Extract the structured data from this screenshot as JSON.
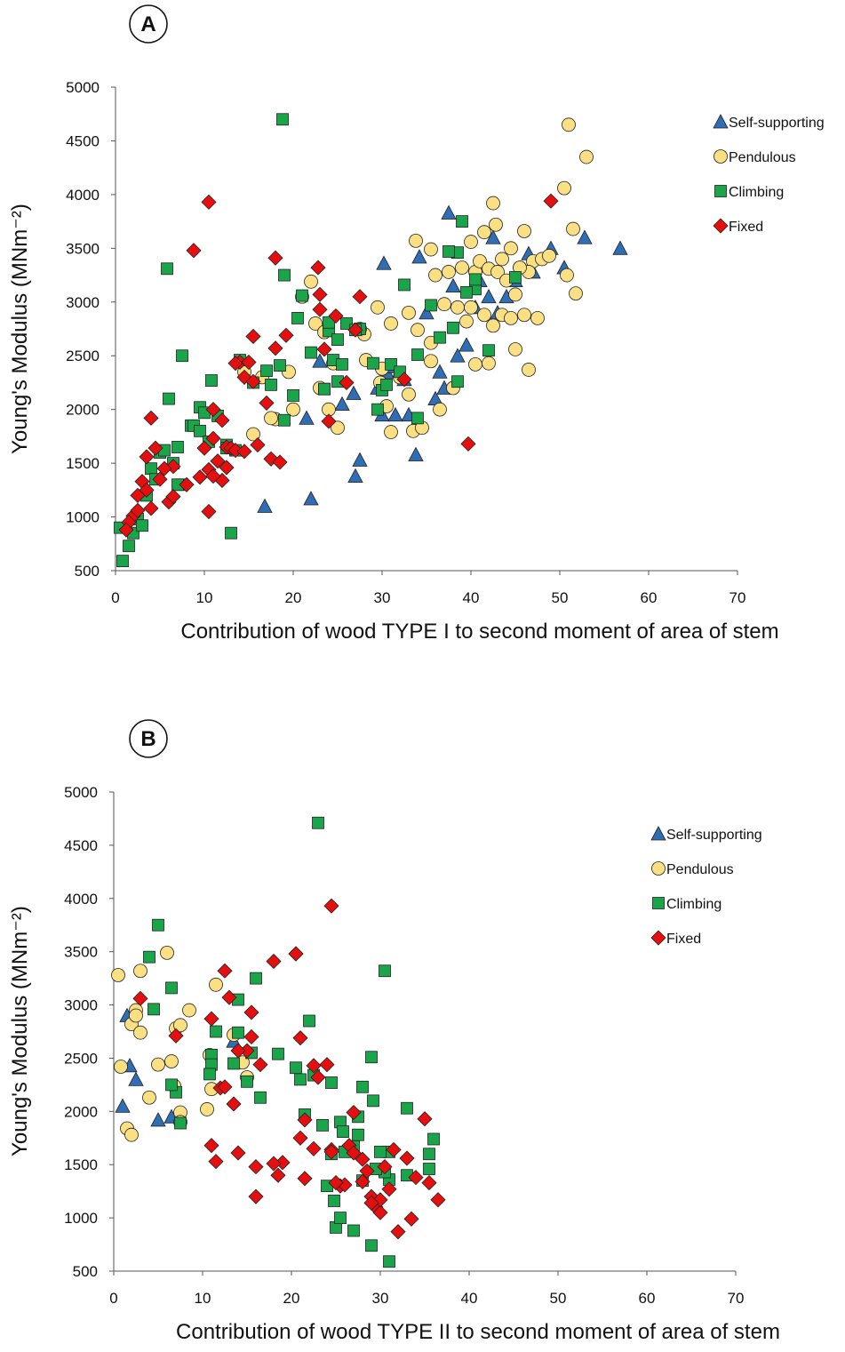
{
  "chart_data": [
    {
      "panel": "A",
      "type": "scatter",
      "xlabel": "Contribution of wood TYPE I to second moment of area of stem",
      "ylabel": "Young's Modulus (MNm⁻²)",
      "xlim": [
        0,
        70
      ],
      "ylim": [
        500,
        5000
      ],
      "xticks": [
        0,
        10,
        20,
        30,
        40,
        50,
        60,
        70
      ],
      "yticks": [
        500,
        1000,
        1500,
        2000,
        2500,
        3000,
        3500,
        4000,
        4500,
        5000
      ],
      "tick_labels_x": [
        "0",
        "10",
        "20",
        "30",
        "40",
        "50",
        "60",
        "70"
      ],
      "tick_labels_y": [
        "500",
        "1000",
        "1500",
        "2000",
        "2500",
        "3000",
        "3500",
        "4000",
        "4500",
        "5000"
      ],
      "grid": false,
      "legend_position": "top-right",
      "series": [
        {
          "name": "Self-supporting",
          "marker": "triangle",
          "color": "#2f6db5",
          "x": [
            16.8,
            22,
            23,
            21.5,
            25.5,
            27,
            26.8,
            27.5,
            30,
            30.5,
            31,
            31.5,
            33,
            33.8,
            34.2,
            35,
            36,
            37,
            38,
            38.5,
            39.5,
            40.5,
            41,
            42,
            43,
            44,
            45,
            46.5,
            47,
            49,
            50.5,
            52.8,
            56.8,
            37.5,
            42.5,
            34,
            30.2,
            32.5,
            29.5,
            36.5
          ],
          "y": [
            1100,
            1170,
            2450,
            1920,
            2050,
            1380,
            2150,
            1530,
            1950,
            2350,
            2400,
            1950,
            1950,
            1580,
            3420,
            2900,
            2100,
            2200,
            3150,
            2500,
            2600,
            2950,
            3200,
            3050,
            2900,
            3050,
            3200,
            3450,
            3280,
            3500,
            3320,
            3600,
            3500,
            3830,
            3600,
            1900,
            3360,
            2280,
            2200,
            2350
          ]
        },
        {
          "name": "Pendulous",
          "marker": "circle",
          "color": "#fbdf83",
          "x": [
            51,
            53,
            50.5,
            51.5,
            51.8,
            42.5,
            42.8,
            41.5,
            40,
            43.5,
            44.5,
            45.5,
            46,
            47,
            46.5,
            48,
            48.8,
            35.5,
            33.8,
            36,
            37.5,
            39,
            40.5,
            41,
            42,
            43,
            44,
            45,
            45.5,
            46,
            47.5,
            50.8,
            38.5,
            39.5,
            40,
            41.5,
            42.5,
            43.5,
            44.5,
            45,
            46.5,
            37,
            35.5,
            34,
            33,
            31,
            29.5,
            28,
            27.5,
            28.2,
            30,
            32,
            35.5,
            36.5,
            38,
            40.5,
            42,
            31,
            33.5,
            34.5,
            22,
            21,
            22.5,
            23.5,
            24.5,
            19.5,
            20,
            18,
            17.5,
            15.5,
            14.5,
            16.5,
            23,
            24,
            25,
            33,
            30.5,
            29.8
          ],
          "y": [
            4650,
            4350,
            4060,
            3680,
            3080,
            3920,
            3720,
            3650,
            3560,
            3400,
            3500,
            3320,
            3660,
            3380,
            3280,
            3400,
            3430,
            3490,
            3570,
            3250,
            3280,
            3320,
            3280,
            3380,
            3310,
            3280,
            3200,
            3070,
            3320,
            2880,
            2850,
            3250,
            2950,
            2820,
            2950,
            2880,
            2780,
            2880,
            2850,
            2560,
            2370,
            2980,
            2620,
            2740,
            2900,
            2800,
            2950,
            2700,
            2750,
            2460,
            2380,
            2300,
            2450,
            2000,
            2200,
            2420,
            2430,
            1790,
            1800,
            1830,
            3190,
            3050,
            2800,
            2720,
            2430,
            2350,
            2000,
            1910,
            1920,
            1770,
            2350,
            2300,
            2200,
            2000,
            1830,
            2140,
            2030,
            2250
          ]
        },
        {
          "name": "Climbing",
          "marker": "square",
          "color": "#1aa54a",
          "x": [
            18.8,
            5.8,
            7.5,
            6,
            8.5,
            9.5,
            10,
            10.8,
            11.5,
            7,
            7.5,
            8.8,
            9.5,
            10.5,
            12.5,
            13.5,
            14,
            15.5,
            17,
            17.5,
            18.5,
            19,
            20,
            20.5,
            21,
            23.5,
            24,
            24.5,
            25,
            27.5,
            29,
            30,
            32.5,
            34,
            35.5,
            38,
            39,
            38.5,
            42,
            40.5,
            12.5,
            13,
            0.5,
            0.8,
            1.5,
            2,
            2.5,
            3,
            3.5,
            4,
            4.5,
            5,
            5.5,
            6.5,
            7,
            19,
            23.5,
            25.5,
            29.5,
            30.5,
            31,
            32,
            34,
            36.5,
            37.5,
            38.5,
            39.5,
            45,
            40.5,
            22,
            24,
            25,
            26,
            27
          ],
          "y": [
            4700,
            3310,
            2500,
            2100,
            1850,
            2020,
            1970,
            2270,
            1940,
            1650,
            1300,
            1850,
            1800,
            1700,
            1670,
            1620,
            2460,
            2250,
            2360,
            2230,
            2410,
            3250,
            2130,
            2850,
            3060,
            2190,
            2730,
            2460,
            2260,
            2750,
            2430,
            2180,
            3160,
            1920,
            2970,
            2760,
            3750,
            3460,
            2550,
            3120,
            1640,
            850,
            900,
            590,
            730,
            850,
            980,
            920,
            1200,
            1450,
            1350,
            1600,
            1620,
            1500,
            1300,
            1900,
            2190,
            2420,
            2000,
            2230,
            2420,
            2350,
            2510,
            2670,
            3470,
            2260,
            3090,
            3230,
            3210,
            2530,
            2810,
            2650,
            2800,
            2740
          ]
        },
        {
          "name": "Fixed",
          "marker": "diamond",
          "color": "#e60f0f",
          "x": [
            10.5,
            8.8,
            49,
            18,
            22.8,
            23,
            23,
            27.5,
            24.8,
            23.5,
            15.5,
            19.2,
            18,
            27,
            26,
            14,
            14.5,
            13.5,
            15,
            15.5,
            17,
            17.5,
            18.5,
            16,
            11,
            12,
            12.5,
            13,
            13.5,
            14.5,
            10,
            11,
            11.5,
            12,
            9.5,
            10.5,
            11,
            12.5,
            8,
            6.5,
            5.5,
            4.5,
            4,
            3.5,
            3,
            2.5,
            2,
            1.5,
            1.2,
            4,
            5,
            6,
            6.5,
            3.5,
            2.5,
            39.7,
            32.5,
            10.5,
            24
          ],
          "y": [
            3930,
            3480,
            3940,
            3410,
            3320,
            3070,
            2930,
            3050,
            2870,
            2560,
            2680,
            2690,
            2570,
            2740,
            2250,
            2440,
            2300,
            2430,
            2440,
            2260,
            2060,
            1540,
            1510,
            1670,
            2000,
            1900,
            1650,
            1640,
            1620,
            1610,
            1640,
            1730,
            1520,
            1340,
            1370,
            1440,
            1380,
            1460,
            1300,
            1470,
            1450,
            1640,
            1920,
            1560,
            1330,
            1200,
            1010,
            950,
            880,
            1080,
            1350,
            1140,
            1190,
            1250,
            1060,
            1680,
            2280,
            1050,
            1890
          ]
        }
      ]
    },
    {
      "panel": "B",
      "type": "scatter",
      "xlabel": "Contribution of wood TYPE II to second moment of area of stem",
      "ylabel": "Young's Modulus (MNm⁻²)",
      "xlim": [
        0,
        70
      ],
      "ylim": [
        500,
        5000
      ],
      "xticks": [
        0,
        10,
        20,
        30,
        40,
        50,
        60,
        70
      ],
      "yticks": [
        500,
        1000,
        1500,
        2000,
        2500,
        3000,
        3500,
        4000,
        4500,
        5000
      ],
      "tick_labels_x": [
        "0",
        "10",
        "20",
        "30",
        "40",
        "50",
        "60",
        "70"
      ],
      "tick_labels_y": [
        "500",
        "1000",
        "1500",
        "2000",
        "2500",
        "3000",
        "3500",
        "4000",
        "4500",
        "5000"
      ],
      "grid": false,
      "legend_position": "top-right",
      "series": [
        {
          "name": "Self-supporting",
          "marker": "triangle",
          "color": "#2f6db5",
          "x": [
            1.5,
            1.8,
            1,
            5,
            6.5,
            13.5,
            2.5
          ],
          "y": [
            2900,
            2430,
            2050,
            1920,
            1950,
            2660,
            2300
          ]
        },
        {
          "name": "Pendulous",
          "marker": "circle",
          "color": "#fbdf83",
          "x": [
            0.5,
            0.8,
            3,
            2.5,
            2,
            2.5,
            3,
            6,
            5,
            4,
            7,
            6.5,
            7.5,
            8.5,
            7.5,
            1.5,
            2,
            11.5,
            10.8,
            11,
            10.5,
            15,
            13.5,
            14.5,
            6.8,
            7.5
          ],
          "y": [
            3280,
            2420,
            3320,
            2950,
            2820,
            2900,
            2740,
            3490,
            2440,
            2130,
            2780,
            2470,
            2810,
            2950,
            1990,
            1840,
            1780,
            3190,
            2530,
            2210,
            2020,
            2320,
            2720,
            2460,
            2240,
            1900
          ]
        },
        {
          "name": "Climbing",
          "marker": "square",
          "color": "#1aa54a",
          "x": [
            23,
            5,
            4,
            4.5,
            6.5,
            11.5,
            7,
            6.5,
            7.5,
            11,
            11,
            10.8,
            14,
            14,
            13.5,
            15.5,
            16.5,
            15,
            16,
            18.5,
            20.5,
            21,
            22,
            22.5,
            24.5,
            25.5,
            25.8,
            27.5,
            28,
            29,
            29.2,
            30.5,
            31,
            33,
            35.5,
            36,
            33,
            31,
            30.5,
            29.5,
            28,
            27,
            26,
            24.5,
            24.8,
            25,
            27,
            29,
            31,
            25.5,
            24,
            27.5,
            30,
            21.5,
            23.5,
            35.5
          ],
          "y": [
            4710,
            3750,
            3450,
            2960,
            3160,
            2750,
            2180,
            2250,
            1890,
            2530,
            2440,
            2350,
            3050,
            2740,
            2450,
            2550,
            2130,
            2280,
            3250,
            2540,
            2410,
            2300,
            2850,
            2340,
            2270,
            1900,
            1810,
            1780,
            2230,
            2510,
            2100,
            3320,
            1620,
            2030,
            1460,
            1740,
            1400,
            1360,
            1430,
            1460,
            1350,
            1670,
            1620,
            1600,
            1160,
            910,
            880,
            740,
            590,
            1000,
            1300,
            1950,
            1620,
            1970,
            1870,
            1600
          ]
        },
        {
          "name": "Fixed",
          "marker": "diamond",
          "color": "#e60f0f",
          "x": [
            24.5,
            7,
            3,
            12.5,
            13,
            11,
            15.5,
            15.5,
            16.5,
            15,
            14,
            21,
            21.5,
            22.5,
            23,
            20.5,
            18,
            13.5,
            12,
            12.5,
            11.5,
            11,
            14,
            16,
            18.5,
            19,
            21.5,
            22.5,
            24.5,
            25.5,
            26.5,
            27,
            28,
            28.5,
            29,
            29.5,
            30,
            30.5,
            31,
            31.5,
            33,
            34,
            35,
            35.5,
            36.5,
            33.5,
            32,
            30,
            29,
            28,
            27,
            26,
            25,
            24.5,
            18,
            21,
            16,
            20.5,
            24
          ],
          "y": [
            3930,
            2710,
            3060,
            3320,
            3070,
            2870,
            2930,
            2700,
            2440,
            2570,
            2570,
            2690,
            1920,
            2430,
            2320,
            3480,
            3410,
            2070,
            2220,
            2230,
            1530,
            1680,
            1610,
            1480,
            1400,
            1520,
            1370,
            1650,
            1640,
            1300,
            1680,
            1990,
            1550,
            1440,
            1200,
            1100,
            1050,
            1480,
            1270,
            1640,
            1560,
            1380,
            1930,
            1330,
            1170,
            990,
            870,
            1170,
            1140,
            1340,
            1610,
            1310,
            1330,
            1620,
            1510,
            1750,
            1200,
            3480,
            2440
          ]
        }
      ]
    }
  ]
}
